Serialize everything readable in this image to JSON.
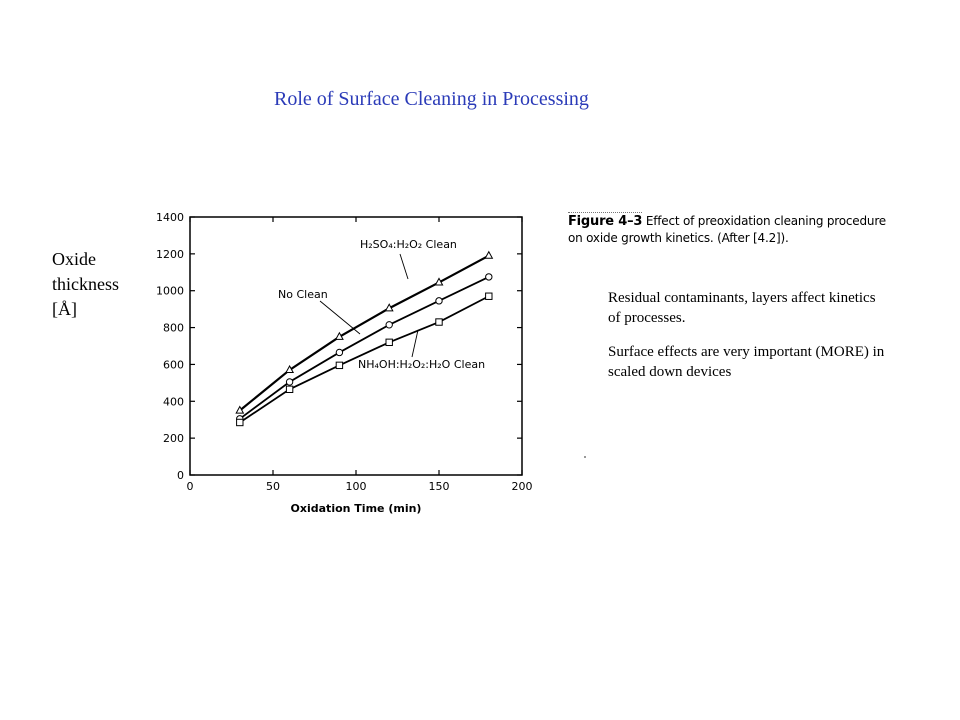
{
  "slide": {
    "title": "Role of Surface Cleaning in Processing",
    "side_label": [
      "Oxide",
      "thickness",
      "[Å]"
    ],
    "notes": [
      "Residual contaminants, layers affect kinetics of processes.",
      "Surface effects are very important (MORE) in scaled down devices"
    ]
  },
  "caption": {
    "figure_label": "Figure 4–3",
    "text_line1": "Effect of preoxidation cleaning procedure",
    "text_line2": "on oxide growth kinetics. (After [4.2])."
  },
  "chart_data": {
    "type": "line",
    "xlabel": "Oxidation Time (min)",
    "ylabel": "",
    "xlim": [
      0,
      200
    ],
    "ylim": [
      0,
      1400
    ],
    "x_ticks": [
      0,
      50,
      100,
      150,
      200
    ],
    "y_ticks": [
      0,
      200,
      400,
      600,
      800,
      1000,
      1200,
      1400
    ],
    "grid": false,
    "x": [
      30,
      60,
      90,
      120,
      150,
      180
    ],
    "series": [
      {
        "name": "H₂SO₄:H₂O₂ Clean",
        "marker": "triangle",
        "values": [
          350,
          570,
          750,
          905,
          1045,
          1190
        ]
      },
      {
        "name": "No Clean",
        "marker": "circle",
        "values": [
          305,
          505,
          665,
          815,
          945,
          1075
        ]
      },
      {
        "name": "NH₄OH:H₂O₂:H₂O Clean",
        "marker": "square",
        "values": [
          285,
          465,
          595,
          720,
          830,
          970
        ]
      }
    ]
  }
}
